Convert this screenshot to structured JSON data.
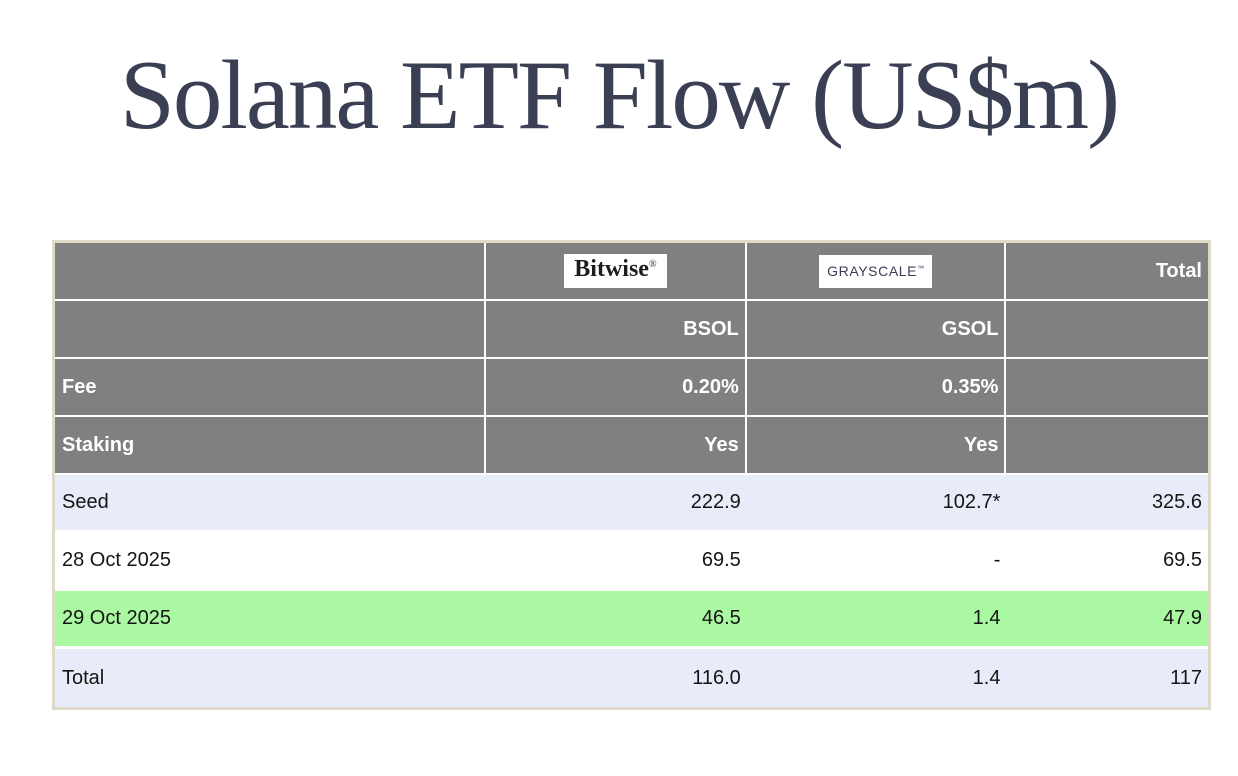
{
  "title": "Solana ETF Flow (US$m)",
  "colors": {
    "header_gray": "#808080",
    "outer_border_beige": "#ded9c9",
    "row_light_blue": "#e8ecf8",
    "row_highlight_green": "#aaf8a2",
    "title_navy": "#3b3f54",
    "bitwise_logo_color": "#1d1d1b",
    "grayscale_logo_color": "#3d3d56",
    "header_text": "#ffffff",
    "body_text": "#151515"
  },
  "header": {
    "bitwise_logo": "Bitwise",
    "bitwise_mark": "®",
    "grayscale_logo": "GRAYSCALE",
    "grayscale_mark": "™",
    "total_label": "Total",
    "bsol_ticker": "BSOL",
    "gsol_ticker": "GSOL"
  },
  "rows": {
    "fee": {
      "label": "Fee",
      "bsol": "0.20%",
      "gsol": "0.35%",
      "total": ""
    },
    "staking": {
      "label": "Staking",
      "bsol": "Yes",
      "gsol": "Yes",
      "total": ""
    },
    "seed": {
      "label": "Seed",
      "bsol": "222.9",
      "gsol": "102.7*",
      "total": "325.6"
    },
    "oct28": {
      "label": "28 Oct 2025",
      "bsol": "69.5",
      "gsol": "-",
      "total": "69.5"
    },
    "oct29": {
      "label": "29 Oct 2025",
      "bsol": "46.5",
      "gsol": "1.4",
      "total": "47.9"
    },
    "total": {
      "label": "Total",
      "bsol": "116.0",
      "gsol": "1.4",
      "total": "117"
    }
  },
  "chart_data": {
    "type": "table",
    "title": "Solana ETF Flow (US$m)",
    "columns": [
      "",
      "Bitwise BSOL",
      "Grayscale GSOL",
      "Total"
    ],
    "rows": [
      [
        "Fee",
        "0.20%",
        "0.35%",
        ""
      ],
      [
        "Staking",
        "Yes",
        "Yes",
        ""
      ],
      [
        "Seed",
        222.9,
        "102.7*",
        325.6
      ],
      [
        "28 Oct 2025",
        69.5,
        "-",
        69.5
      ],
      [
        "29 Oct 2025",
        46.5,
        1.4,
        47.9
      ],
      [
        "Total",
        116.0,
        1.4,
        117
      ]
    ],
    "notes": "29 Oct 2025 row highlighted green; Seed and Total rows light blue; * footnote marker on Grayscale seed value"
  }
}
